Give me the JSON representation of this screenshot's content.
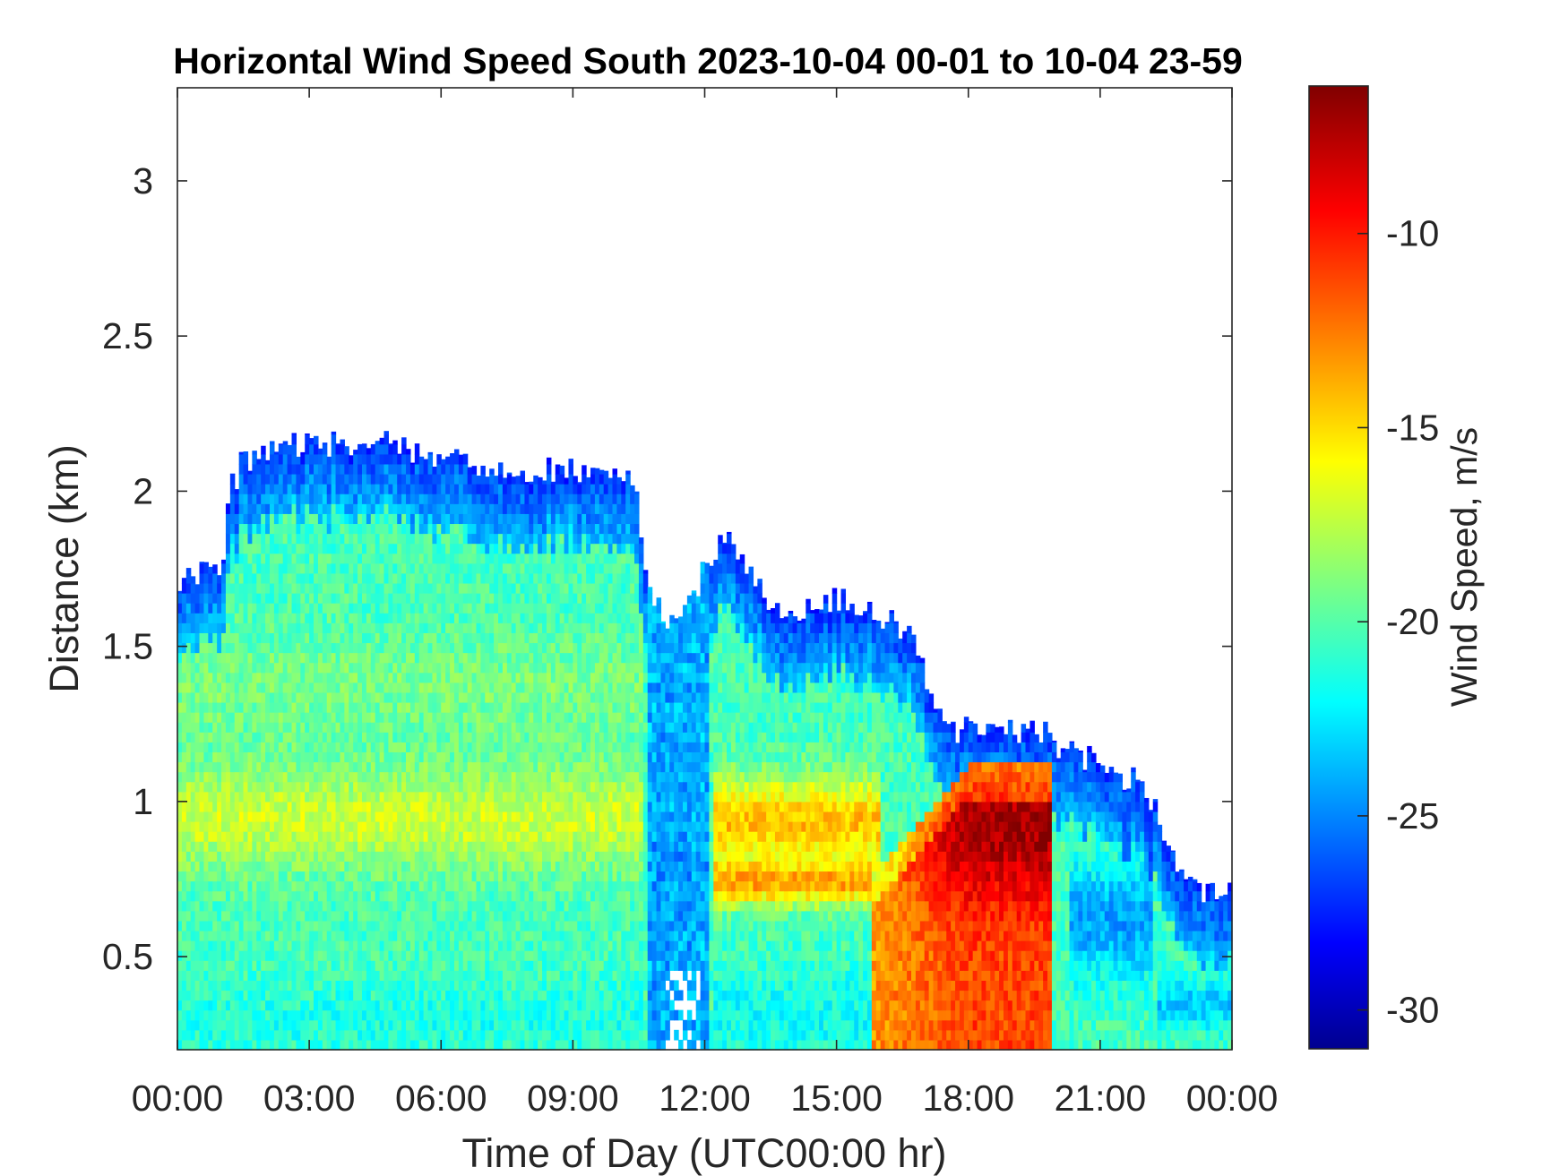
{
  "chart_data": {
    "type": "heatmap",
    "title": "Horizontal Wind Speed South 2023-10-04 00-01 to 10-04 23-59",
    "xlabel": "Time of Day (UTC00:00 hr)",
    "ylabel": "Distance (km)",
    "x_unit": "hours",
    "xlim": [
      0,
      24
    ],
    "ylim": [
      0.2,
      3.3
    ],
    "x_ticks": [
      0,
      3,
      6,
      9,
      12,
      15,
      18,
      21,
      24
    ],
    "x_tick_labels": [
      "00:00",
      "03:00",
      "06:00",
      "09:00",
      "12:00",
      "15:00",
      "18:00",
      "21:00",
      "00:00"
    ],
    "y_ticks": [
      0.5,
      1,
      1.5,
      2,
      2.5,
      3
    ],
    "y_tick_labels": [
      "0.5",
      "1",
      "1.5",
      "2",
      "2.5",
      "3"
    ],
    "colorbar": {
      "label": "Wind Speed, m/s",
      "colormap": "jet",
      "range": [
        -31,
        -6.2
      ],
      "ticks": [
        -30,
        -25,
        -20,
        -15,
        -10
      ],
      "tick_labels": [
        "-30",
        "-25",
        "-20",
        "-15",
        "-10"
      ]
    },
    "data_top_profile_km": [
      [
        0,
        1.72
      ],
      [
        1,
        1.75
      ],
      [
        1.2,
        2.0
      ],
      [
        1.5,
        2.1
      ],
      [
        2,
        2.13
      ],
      [
        3,
        2.15
      ],
      [
        4,
        2.15
      ],
      [
        5,
        2.15
      ],
      [
        6,
        2.1
      ],
      [
        7,
        2.08
      ],
      [
        8,
        2.07
      ],
      [
        9,
        2.07
      ],
      [
        10,
        2.07
      ],
      [
        10.4,
        2.0
      ],
      [
        10.8,
        1.65
      ],
      [
        11.2,
        1.58
      ],
      [
        11.6,
        1.62
      ],
      [
        12,
        1.75
      ],
      [
        12.4,
        1.85
      ],
      [
        12.8,
        1.78
      ],
      [
        13.5,
        1.62
      ],
      [
        14,
        1.6
      ],
      [
        15,
        1.65
      ],
      [
        16,
        1.6
      ],
      [
        16.6,
        1.55
      ],
      [
        17,
        1.42
      ],
      [
        17.5,
        1.22
      ],
      [
        18,
        1.23
      ],
      [
        19,
        1.22
      ],
      [
        19.5,
        1.25
      ],
      [
        20,
        1.18
      ],
      [
        21,
        1.12
      ],
      [
        22,
        1.05
      ],
      [
        22.5,
        0.9
      ],
      [
        23,
        0.72
      ],
      [
        24,
        0.72
      ]
    ],
    "features": [
      {
        "x_range": [
          0,
          10.5
        ],
        "y_range": [
          0.75,
          1.1
        ],
        "value": -16,
        "note": "yellow band"
      },
      {
        "x_range": [
          11,
          12
        ],
        "y_range": [
          0.2,
          1.6
        ],
        "value": -25,
        "note": "blue column"
      },
      {
        "x_range": [
          12.4,
          15.8
        ],
        "y_range": [
          0.6,
          1.05
        ],
        "value": -13.5,
        "note": "orange patch"
      },
      {
        "x_range": [
          15.8,
          19.8
        ],
        "y_range": [
          0.2,
          1.1
        ],
        "value": -7.5,
        "note": "red core"
      }
    ]
  }
}
